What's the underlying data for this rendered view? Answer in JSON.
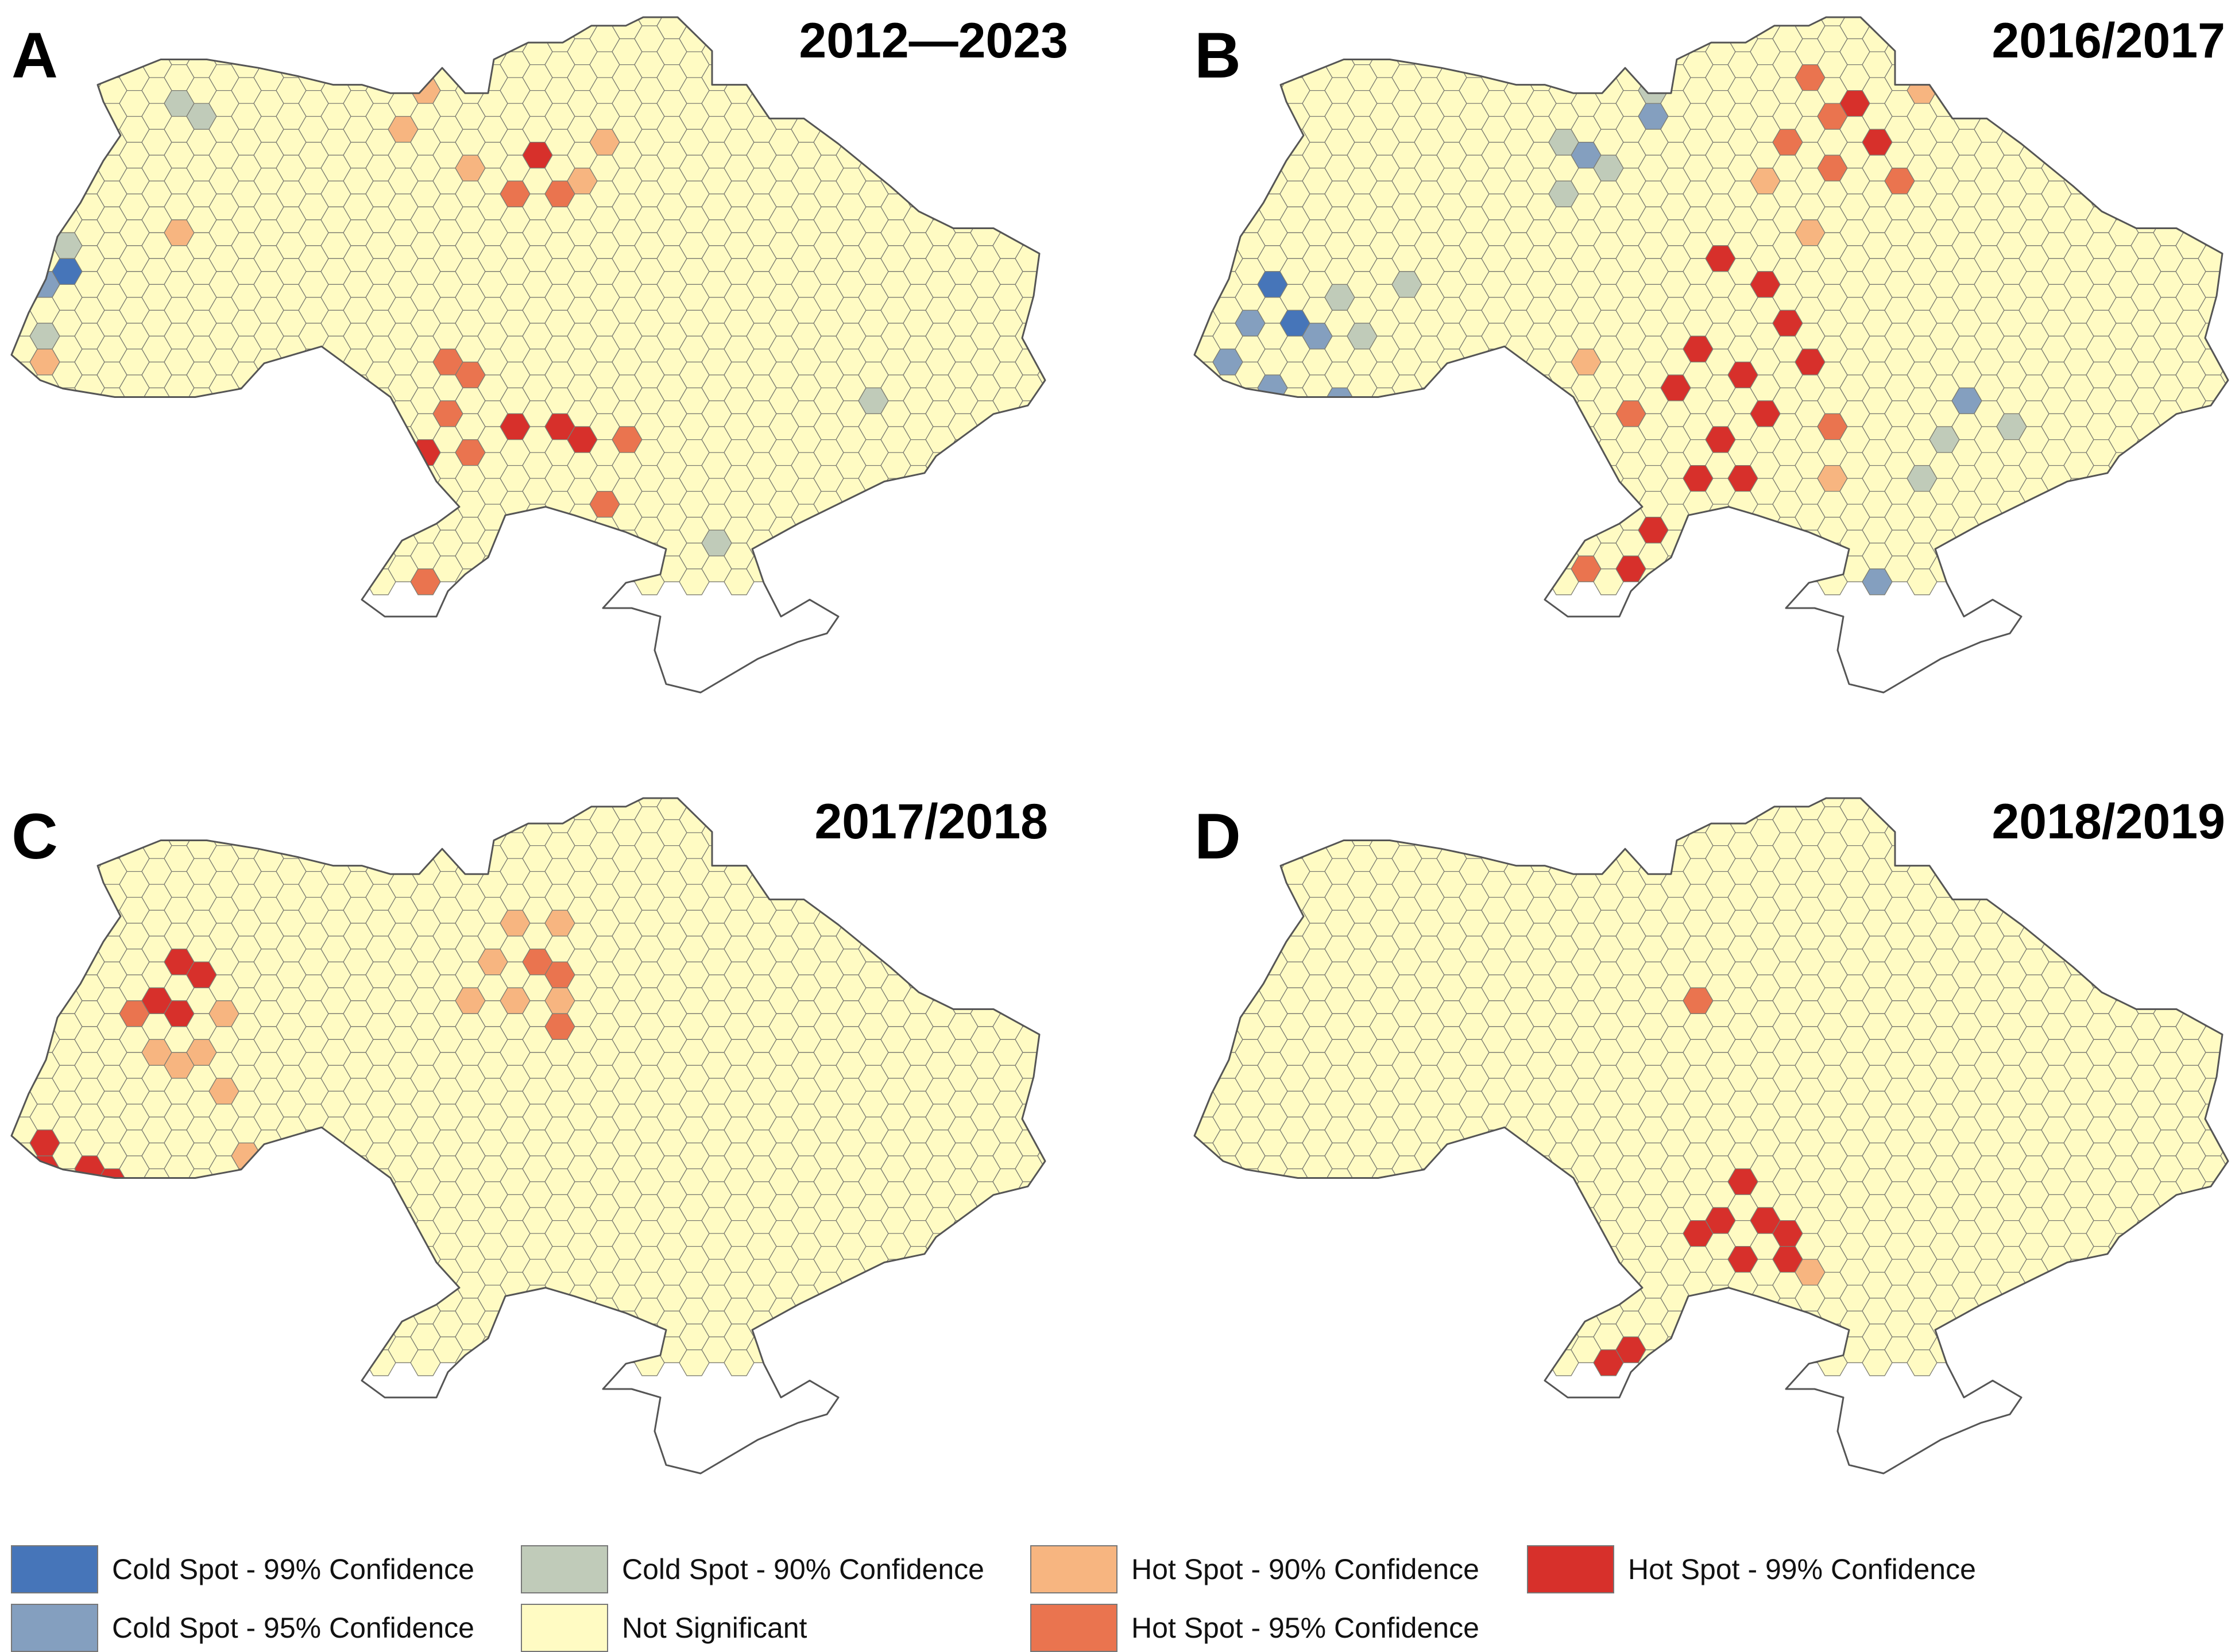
{
  "figure": {
    "panels": [
      {
        "letter": "A",
        "years": "2012—2023",
        "spots": [
          {
            "cat": "cold90",
            "lon": 23.3,
            "lat": 49.8
          },
          {
            "cat": "cold95",
            "lon": 22.9,
            "lat": 49.2
          },
          {
            "cat": "cold90",
            "lon": 22.7,
            "lat": 48.6
          },
          {
            "cat": "cold99",
            "lon": 23.0,
            "lat": 49.5
          },
          {
            "cat": "cold90",
            "lon": 25.6,
            "lat": 51.1
          },
          {
            "cat": "cold90",
            "lon": 25.2,
            "lat": 51.4
          },
          {
            "cat": "hot90",
            "lon": 25.0,
            "lat": 49.8
          },
          {
            "cat": "hot90",
            "lon": 29.3,
            "lat": 51.4
          },
          {
            "cat": "hot90",
            "lon": 28.9,
            "lat": 51.0
          },
          {
            "cat": "hot90",
            "lon": 30.3,
            "lat": 50.6
          },
          {
            "cat": "hot99",
            "lon": 31.4,
            "lat": 50.8
          },
          {
            "cat": "hot95",
            "lon": 31.0,
            "lat": 50.4
          },
          {
            "cat": "hot95",
            "lon": 31.8,
            "lat": 50.2
          },
          {
            "cat": "hot90",
            "lon": 32.3,
            "lat": 50.6
          },
          {
            "cat": "hot90",
            "lon": 32.6,
            "lat": 51.0
          },
          {
            "cat": "hot99",
            "lon": 30.9,
            "lat": 47.6
          },
          {
            "cat": "hot99",
            "lon": 31.6,
            "lat": 47.4
          },
          {
            "cat": "hot99",
            "lon": 32.3,
            "lat": 47.3
          },
          {
            "cat": "hot95",
            "lon": 30.3,
            "lat": 48.1
          },
          {
            "cat": "hot95",
            "lon": 29.7,
            "lat": 47.7
          },
          {
            "cat": "hot95",
            "lon": 29.9,
            "lat": 48.3
          },
          {
            "cat": "hot95",
            "lon": 30.3,
            "lat": 47.2
          },
          {
            "cat": "hot95",
            "lon": 32.9,
            "lat": 47.5
          },
          {
            "cat": "hot95",
            "lon": 32.4,
            "lat": 46.7
          },
          {
            "cat": "hot99",
            "lon": 29.4,
            "lat": 47.2
          },
          {
            "cat": "hot90",
            "lon": 28.7,
            "lat": 47.2
          },
          {
            "cat": "hot90",
            "lon": 22.9,
            "lat": 48.3
          },
          {
            "cat": "hot95",
            "lon": 22.5,
            "lat": 46.9
          },
          {
            "cat": "hot90",
            "lon": 26.3,
            "lat": 47.8
          },
          {
            "cat": "hot95",
            "lon": 28.9,
            "lat": 45.5
          },
          {
            "cat": "hot99",
            "lon": 28.5,
            "lat": 45.4
          },
          {
            "cat": "hot95",
            "lon": 29.3,
            "lat": 45.7
          },
          {
            "cat": "cold95",
            "lon": 34.3,
            "lat": 45.4
          },
          {
            "cat": "cold95",
            "lon": 34.0,
            "lat": 45.0
          },
          {
            "cat": "cold95",
            "lon": 34.8,
            "lat": 45.1
          },
          {
            "cat": "cold95",
            "lon": 33.8,
            "lat": 45.7
          },
          {
            "cat": "cold90",
            "lon": 34.3,
            "lat": 46.3
          },
          {
            "cat": "cold90",
            "lon": 35.4,
            "lat": 45.3
          },
          {
            "cat": "cold90",
            "lon": 33.4,
            "lat": 45.2
          },
          {
            "cat": "cold90",
            "lon": 37.1,
            "lat": 47.9
          }
        ]
      },
      {
        "letter": "B",
        "years": "2016/2017",
        "spots": [
          {
            "cat": "cold90",
            "lon": 30.3,
            "lat": 51.6
          },
          {
            "cat": "cold95",
            "lon": 30.2,
            "lat": 51.2
          },
          {
            "cat": "cold95",
            "lon": 29.2,
            "lat": 50.9
          },
          {
            "cat": "cold90",
            "lon": 28.6,
            "lat": 50.9
          },
          {
            "cat": "cold90",
            "lon": 29.6,
            "lat": 50.5
          },
          {
            "cat": "cold90",
            "lon": 28.8,
            "lat": 50.2
          },
          {
            "cat": "cold95",
            "lon": 23.3,
            "lat": 48.9
          },
          {
            "cat": "cold95",
            "lon": 22.9,
            "lat": 48.4
          },
          {
            "cat": "cold99",
            "lon": 23.6,
            "lat": 49.2
          },
          {
            "cat": "cold99",
            "lon": 23.9,
            "lat": 48.9
          },
          {
            "cat": "cold95",
            "lon": 24.3,
            "lat": 48.5
          },
          {
            "cat": "cold95",
            "lon": 23.7,
            "lat": 48.1
          },
          {
            "cat": "cold95",
            "lon": 24.6,
            "lat": 47.9
          },
          {
            "cat": "cold90",
            "lon": 24.9,
            "lat": 49.0
          },
          {
            "cat": "cold90",
            "lon": 25.8,
            "lat": 49.3
          },
          {
            "cat": "cold90",
            "lon": 25.3,
            "lat": 48.6
          },
          {
            "cat": "cold90",
            "lon": 23.2,
            "lat": 47.6
          },
          {
            "cat": "hot99",
            "lon": 33.8,
            "lat": 51.4
          },
          {
            "cat": "hot99",
            "lon": 34.2,
            "lat": 51.0
          },
          {
            "cat": "hot95",
            "lon": 33.2,
            "lat": 51.3
          },
          {
            "cat": "hot95",
            "lon": 32.8,
            "lat": 51.7
          },
          {
            "cat": "hot95",
            "lon": 32.5,
            "lat": 51.0
          },
          {
            "cat": "hot95",
            "lon": 33.2,
            "lat": 50.6
          },
          {
            "cat": "hot95",
            "lon": 34.5,
            "lat": 50.5
          },
          {
            "cat": "hot90",
            "lon": 32.2,
            "lat": 50.6
          },
          {
            "cat": "hot90",
            "lon": 33.0,
            "lat": 50.0
          },
          {
            "cat": "hot90",
            "lon": 34.9,
            "lat": 51.4
          },
          {
            "cat": "hot99",
            "lon": 31.0,
            "lat": 48.5
          },
          {
            "cat": "hot99",
            "lon": 31.8,
            "lat": 48.3
          },
          {
            "cat": "hot99",
            "lon": 32.5,
            "lat": 48.7
          },
          {
            "cat": "hot99",
            "lon": 32.2,
            "lat": 49.3
          },
          {
            "cat": "hot99",
            "lon": 31.3,
            "lat": 49.4
          },
          {
            "cat": "hot99",
            "lon": 30.5,
            "lat": 48.0
          },
          {
            "cat": "hot99",
            "lon": 31.4,
            "lat": 47.5
          },
          {
            "cat": "hot99",
            "lon": 32.3,
            "lat": 47.6
          },
          {
            "cat": "hot99",
            "lon": 30.9,
            "lat": 46.9
          },
          {
            "cat": "hot99",
            "lon": 31.7,
            "lat": 46.9
          },
          {
            "cat": "hot99",
            "lon": 32.9,
            "lat": 48.2
          },
          {
            "cat": "hot99",
            "lon": 30.2,
            "lat": 46.4
          },
          {
            "cat": "hot99",
            "lon": 29.9,
            "lat": 45.9
          },
          {
            "cat": "hot95",
            "lon": 29.7,
            "lat": 47.6
          },
          {
            "cat": "hot95",
            "lon": 33.2,
            "lat": 47.4
          },
          {
            "cat": "hot95",
            "lon": 29.1,
            "lat": 45.8
          },
          {
            "cat": "hot90",
            "lon": 29.0,
            "lat": 48.3
          },
          {
            "cat": "hot90",
            "lon": 33.3,
            "lat": 46.9
          },
          {
            "cat": "hot90",
            "lon": 29.1,
            "lat": 45.4
          },
          {
            "cat": "cold95",
            "lon": 34.5,
            "lat": 45.3
          },
          {
            "cat": "cold95",
            "lon": 34.0,
            "lat": 45.0
          },
          {
            "cat": "cold95",
            "lon": 34.9,
            "lat": 45.1
          },
          {
            "cat": "cold95",
            "lon": 34.1,
            "lat": 45.7
          },
          {
            "cat": "cold95",
            "lon": 35.7,
            "lat": 45.4
          },
          {
            "cat": "cold95",
            "lon": 34.8,
            "lat": 44.8
          },
          {
            "cat": "cold95",
            "lon": 35.6,
            "lat": 47.8
          },
          {
            "cat": "cold90",
            "lon": 35.4,
            "lat": 47.3
          },
          {
            "cat": "cold90",
            "lon": 36.3,
            "lat": 47.7
          },
          {
            "cat": "cold90",
            "lon": 34.9,
            "lat": 46.8
          }
        ]
      },
      {
        "letter": "C",
        "years": "2017/2018",
        "spots": [
          {
            "cat": "hot99",
            "lon": 25.2,
            "lat": 50.6
          },
          {
            "cat": "hot99",
            "lon": 25.6,
            "lat": 50.2
          },
          {
            "cat": "hot99",
            "lon": 24.9,
            "lat": 50.0
          },
          {
            "cat": "hot99",
            "lon": 25.3,
            "lat": 49.7
          },
          {
            "cat": "hot95",
            "lon": 24.4,
            "lat": 49.9
          },
          {
            "cat": "hot90",
            "lon": 26.0,
            "lat": 49.9
          },
          {
            "cat": "hot90",
            "lon": 25.1,
            "lat": 49.2
          },
          {
            "cat": "hot90",
            "lon": 24.6,
            "lat": 49.3
          },
          {
            "cat": "hot90",
            "lon": 25.7,
            "lat": 49.3
          },
          {
            "cat": "hot99",
            "lon": 22.9,
            "lat": 48.4
          },
          {
            "cat": "hot99",
            "lon": 23.4,
            "lat": 48.1
          },
          {
            "cat": "hot99",
            "lon": 22.6,
            "lat": 47.9
          },
          {
            "cat": "hot99",
            "lon": 23.8,
            "lat": 47.9
          },
          {
            "cat": "hot90",
            "lon": 24.2,
            "lat": 47.6
          },
          {
            "cat": "hot90",
            "lon": 25.9,
            "lat": 48.8
          },
          {
            "cat": "hot90",
            "lon": 26.2,
            "lat": 48.3
          },
          {
            "cat": "hot95",
            "lon": 31.2,
            "lat": 50.6
          },
          {
            "cat": "hot95",
            "lon": 31.6,
            "lat": 50.4
          },
          {
            "cat": "hot90",
            "lon": 30.6,
            "lat": 50.4
          },
          {
            "cat": "hot90",
            "lon": 30.2,
            "lat": 50.0
          },
          {
            "cat": "hot90",
            "lon": 31.0,
            "lat": 50.9
          },
          {
            "cat": "hot90",
            "lon": 31.8,
            "lat": 50.9
          },
          {
            "cat": "hot90",
            "lon": 31.7,
            "lat": 50.0
          },
          {
            "cat": "hot95",
            "lon": 31.8,
            "lat": 49.6
          },
          {
            "cat": "hot90",
            "lon": 30.9,
            "lat": 49.9
          },
          {
            "cat": "hot95",
            "lon": 37.0,
            "lat": 51.2
          },
          {
            "cat": "hot90",
            "lon": 37.0,
            "lat": 51.5
          },
          {
            "cat": "hot90",
            "lon": 37.7,
            "lat": 52.0
          }
        ]
      },
      {
        "letter": "D",
        "years": "2018/2019",
        "spots": [
          {
            "cat": "hot95",
            "lon": 30.8,
            "lat": 49.9
          },
          {
            "cat": "hot99",
            "lon": 31.4,
            "lat": 47.5
          },
          {
            "cat": "hot99",
            "lon": 32.2,
            "lat": 47.4
          },
          {
            "cat": "hot99",
            "lon": 31.7,
            "lat": 47.8
          },
          {
            "cat": "hot99",
            "lon": 32.7,
            "lat": 47.2
          },
          {
            "cat": "hot99",
            "lon": 31.0,
            "lat": 47.1
          },
          {
            "cat": "hot99",
            "lon": 31.8,
            "lat": 46.9
          },
          {
            "cat": "hot99",
            "lon": 32.5,
            "lat": 46.8
          },
          {
            "cat": "hot90",
            "lon": 33.1,
            "lat": 46.9
          },
          {
            "cat": "hot99",
            "lon": 29.6,
            "lat": 45.6
          },
          {
            "cat": "hot99",
            "lon": 29.3,
            "lat": 45.4
          },
          {
            "cat": "hot99",
            "lon": 29.9,
            "lat": 45.8
          }
        ]
      }
    ]
  },
  "legend": {
    "items": [
      {
        "cat": "cold99",
        "label": "Cold Spot - 99% Confidence",
        "color": "#4675b9"
      },
      {
        "cat": "cold95",
        "label": "Cold Spot - 95% Confidence",
        "color": "#849fbf"
      },
      {
        "cat": "cold90",
        "label": "Cold Spot - 90% Confidence",
        "color": "#c0cbb9"
      },
      {
        "cat": "ns",
        "label": "Not Significant",
        "color": "#fffbc3"
      },
      {
        "cat": "hot90",
        "label": "Hot Spot - 90% Confidence",
        "color": "#f7b580"
      },
      {
        "cat": "hot95",
        "label": "Hot Spot - 95% Confidence",
        "color": "#ea744f"
      },
      {
        "cat": "hot99",
        "label": "Hot Spot - 99% Confidence",
        "color": "#d7302b"
      }
    ]
  },
  "map": {
    "outline": [
      [
        22.2,
        48.4
      ],
      [
        22.5,
        48.9
      ],
      [
        22.8,
        49.3
      ],
      [
        23.0,
        49.8
      ],
      [
        23.4,
        50.2
      ],
      [
        23.8,
        50.7
      ],
      [
        24.1,
        51.0
      ],
      [
        23.8,
        51.4
      ],
      [
        23.7,
        51.6
      ],
      [
        24.8,
        51.9
      ],
      [
        25.6,
        51.9
      ],
      [
        26.5,
        51.8
      ],
      [
        27.2,
        51.7
      ],
      [
        27.8,
        51.6
      ],
      [
        28.3,
        51.6
      ],
      [
        28.8,
        51.5
      ],
      [
        29.3,
        51.5
      ],
      [
        29.7,
        51.8
      ],
      [
        30.1,
        51.5
      ],
      [
        30.5,
        51.5
      ],
      [
        30.6,
        51.9
      ],
      [
        31.2,
        52.1
      ],
      [
        31.8,
        52.1
      ],
      [
        32.3,
        52.3
      ],
      [
        32.9,
        52.3
      ],
      [
        33.2,
        52.4
      ],
      [
        33.8,
        52.4
      ],
      [
        34.4,
        52.0
      ],
      [
        34.4,
        51.6
      ],
      [
        35.0,
        51.6
      ],
      [
        35.4,
        51.2
      ],
      [
        36.0,
        51.2
      ],
      [
        36.6,
        50.9
      ],
      [
        37.5,
        50.4
      ],
      [
        38.0,
        50.1
      ],
      [
        38.6,
        49.9
      ],
      [
        39.3,
        49.9
      ],
      [
        40.1,
        49.6
      ],
      [
        40.0,
        49.1
      ],
      [
        39.8,
        48.6
      ],
      [
        40.2,
        48.1
      ],
      [
        39.9,
        47.8
      ],
      [
        39.3,
        47.7
      ],
      [
        38.3,
        47.2
      ],
      [
        38.1,
        47.0
      ],
      [
        37.4,
        46.9
      ],
      [
        36.8,
        46.7
      ],
      [
        35.9,
        46.4
      ],
      [
        35.1,
        46.1
      ],
      [
        35.3,
        45.7
      ],
      [
        35.6,
        45.3
      ],
      [
        36.1,
        45.5
      ],
      [
        36.6,
        45.3
      ],
      [
        36.4,
        45.1
      ],
      [
        35.9,
        45.0
      ],
      [
        35.2,
        44.8
      ],
      [
        34.7,
        44.6
      ],
      [
        34.2,
        44.4
      ],
      [
        33.6,
        44.5
      ],
      [
        33.4,
        44.9
      ],
      [
        33.5,
        45.3
      ],
      [
        33.0,
        45.4
      ],
      [
        32.5,
        45.4
      ],
      [
        32.9,
        45.7
      ],
      [
        33.5,
        45.8
      ],
      [
        33.6,
        46.1
      ],
      [
        32.9,
        46.3
      ],
      [
        32.0,
        46.5
      ],
      [
        31.5,
        46.6
      ],
      [
        30.8,
        46.5
      ],
      [
        30.5,
        46.0
      ],
      [
        30.1,
        45.8
      ],
      [
        29.8,
        45.6
      ],
      [
        29.6,
        45.3
      ],
      [
        28.7,
        45.3
      ],
      [
        28.3,
        45.5
      ],
      [
        28.7,
        45.9
      ],
      [
        29.0,
        46.2
      ],
      [
        29.6,
        46.4
      ],
      [
        30.0,
        46.6
      ],
      [
        29.6,
        46.9
      ],
      [
        29.2,
        47.4
      ],
      [
        28.8,
        47.9
      ],
      [
        28.2,
        48.2
      ],
      [
        27.6,
        48.5
      ],
      [
        26.6,
        48.3
      ],
      [
        26.2,
        48.0
      ],
      [
        25.4,
        47.9
      ],
      [
        24.7,
        47.9
      ],
      [
        24.0,
        47.9
      ],
      [
        23.1,
        48.0
      ],
      [
        22.7,
        48.1
      ]
    ]
  }
}
